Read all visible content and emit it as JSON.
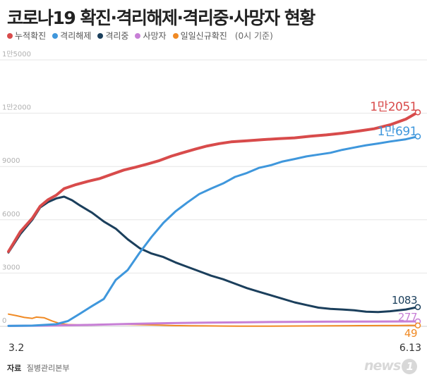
{
  "title": "코로나19 확진·격리해제·격리중·사망자 현황",
  "legend_note": "(0시 기준)",
  "source_label": "자료",
  "source_value": "질병관리본부",
  "logo_text": "news",
  "logo_mark": "1",
  "chart_data": {
    "type": "line",
    "title": "코로나19 확진·격리해제·격리중·사망자 현황",
    "xlabel": "",
    "ylabel": "",
    "ylim": [
      0,
      15000
    ],
    "xlim": [
      "3.2",
      "6.13"
    ],
    "grid": true,
    "legend_position": "top-left",
    "yticks": [
      {
        "value": 0,
        "label": "0"
      },
      {
        "value": 3000,
        "label": "3000"
      },
      {
        "value": 6000,
        "label": "6000"
      },
      {
        "value": 9000,
        "label": "9000"
      },
      {
        "value": 12000,
        "label": "1만2000"
      },
      {
        "value": 15000,
        "label": "1만5000"
      }
    ],
    "xticks": [
      "3.2",
      "6.13"
    ],
    "x_day_count": 104,
    "series": [
      {
        "name": "누적확진",
        "color": "#d84b4b",
        "width": 4,
        "end_label": "1만2051",
        "points": [
          [
            0,
            4212
          ],
          [
            3,
            5328
          ],
          [
            6,
            6088
          ],
          [
            8,
            6767
          ],
          [
            10,
            7134
          ],
          [
            12,
            7382
          ],
          [
            14,
            7755
          ],
          [
            17,
            7979
          ],
          [
            20,
            8162
          ],
          [
            23,
            8320
          ],
          [
            26,
            8565
          ],
          [
            29,
            8799
          ],
          [
            32,
            8961
          ],
          [
            35,
            9137
          ],
          [
            38,
            9332
          ],
          [
            41,
            9583
          ],
          [
            44,
            9786
          ],
          [
            47,
            9976
          ],
          [
            50,
            10156
          ],
          [
            53,
            10284
          ],
          [
            56,
            10384
          ],
          [
            60,
            10450
          ],
          [
            64,
            10512
          ],
          [
            68,
            10564
          ],
          [
            72,
            10613
          ],
          [
            76,
            10708
          ],
          [
            80,
            10776
          ],
          [
            84,
            10874
          ],
          [
            88,
            10991
          ],
          [
            92,
            11122
          ],
          [
            96,
            11344
          ],
          [
            100,
            11668
          ],
          [
            103,
            12051
          ]
        ]
      },
      {
        "name": "격리해제",
        "color": "#3f97dc",
        "width": 3,
        "end_label": "1만691",
        "points": [
          [
            0,
            22
          ],
          [
            6,
            41
          ],
          [
            12,
            118
          ],
          [
            15,
            303
          ],
          [
            18,
            714
          ],
          [
            21,
            1137
          ],
          [
            24,
            1540
          ],
          [
            27,
            2612
          ],
          [
            30,
            3166
          ],
          [
            33,
            4144
          ],
          [
            36,
            5033
          ],
          [
            39,
            5828
          ],
          [
            42,
            6463
          ],
          [
            45,
            6973
          ],
          [
            48,
            7447
          ],
          [
            51,
            7757
          ],
          [
            54,
            8042
          ],
          [
            57,
            8411
          ],
          [
            60,
            8635
          ],
          [
            63,
            8922
          ],
          [
            66,
            9072
          ],
          [
            69,
            9283
          ],
          [
            72,
            9419
          ],
          [
            75,
            9568
          ],
          [
            78,
            9670
          ],
          [
            81,
            9771
          ],
          [
            84,
            9938
          ],
          [
            87,
            10066
          ],
          [
            90,
            10194
          ],
          [
            93,
            10295
          ],
          [
            96,
            10405
          ],
          [
            100,
            10531
          ],
          [
            103,
            10691
          ]
        ]
      },
      {
        "name": "격리중",
        "color": "#1b3f5c",
        "width": 3,
        "end_label": "1083",
        "points": [
          [
            0,
            4160
          ],
          [
            3,
            5200
          ],
          [
            6,
            6000
          ],
          [
            8,
            6700
          ],
          [
            10,
            7000
          ],
          [
            12,
            7200
          ],
          [
            14,
            7300
          ],
          [
            16,
            7100
          ],
          [
            18,
            6800
          ],
          [
            21,
            6400
          ],
          [
            24,
            5900
          ],
          [
            27,
            5500
          ],
          [
            30,
            4900
          ],
          [
            33,
            4400
          ],
          [
            36,
            4100
          ],
          [
            39,
            3900
          ],
          [
            42,
            3600
          ],
          [
            45,
            3350
          ],
          [
            48,
            3100
          ],
          [
            51,
            2850
          ],
          [
            54,
            2650
          ],
          [
            57,
            2400
          ],
          [
            60,
            2150
          ],
          [
            63,
            1950
          ],
          [
            66,
            1750
          ],
          [
            69,
            1550
          ],
          [
            72,
            1350
          ],
          [
            75,
            1200
          ],
          [
            78,
            1050
          ],
          [
            81,
            980
          ],
          [
            84,
            950
          ],
          [
            87,
            900
          ],
          [
            90,
            820
          ],
          [
            93,
            800
          ],
          [
            96,
            850
          ],
          [
            100,
            950
          ],
          [
            103,
            1083
          ]
        ]
      },
      {
        "name": "사망자",
        "color": "#c77fd6",
        "width": 3,
        "end_label": "277",
        "points": [
          [
            0,
            22
          ],
          [
            10,
            40
          ],
          [
            20,
            80
          ],
          [
            30,
            135
          ],
          [
            40,
            180
          ],
          [
            50,
            210
          ],
          [
            60,
            230
          ],
          [
            70,
            250
          ],
          [
            80,
            260
          ],
          [
            90,
            270
          ],
          [
            103,
            277
          ]
        ]
      },
      {
        "name": "일일신규확진",
        "color": "#f08a24",
        "width": 2,
        "end_label": "49",
        "points": [
          [
            0,
            686
          ],
          [
            2,
            600
          ],
          [
            4,
            500
          ],
          [
            6,
            450
          ],
          [
            7,
            520
          ],
          [
            9,
            480
          ],
          [
            11,
            300
          ],
          [
            13,
            150
          ],
          [
            15,
            100
          ],
          [
            18,
            80
          ],
          [
            22,
            100
          ],
          [
            26,
            120
          ],
          [
            30,
            110
          ],
          [
            34,
            90
          ],
          [
            38,
            70
          ],
          [
            42,
            40
          ],
          [
            46,
            30
          ],
          [
            50,
            25
          ],
          [
            54,
            15
          ],
          [
            58,
            10
          ],
          [
            62,
            8
          ],
          [
            66,
            10
          ],
          [
            70,
            15
          ],
          [
            74,
            20
          ],
          [
            78,
            25
          ],
          [
            82,
            30
          ],
          [
            86,
            35
          ],
          [
            90,
            40
          ],
          [
            94,
            45
          ],
          [
            98,
            45
          ],
          [
            101,
            55
          ],
          [
            103,
            49
          ]
        ]
      }
    ]
  }
}
